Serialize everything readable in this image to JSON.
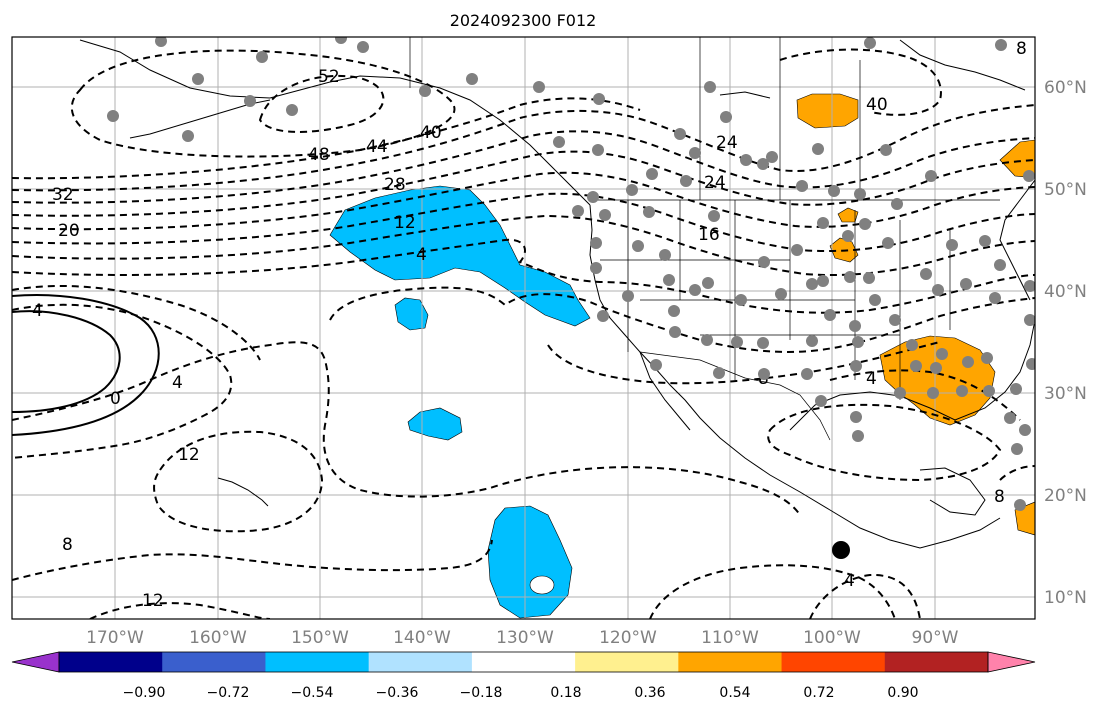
{
  "title": "2024092300 F012",
  "lon_labels": [
    "170°W",
    "160°W",
    "150°W",
    "140°W",
    "130°W",
    "120°W",
    "110°W",
    "100°W",
    "90°W"
  ],
  "lat_labels": [
    "60°N",
    "50°N",
    "40°N",
    "30°N",
    "20°N",
    "10°N"
  ],
  "contour_labels": [
    "52",
    "48",
    "44",
    "40",
    "28",
    "12",
    "4",
    "32",
    "20",
    "4",
    "0",
    "4",
    "12",
    "8",
    "12",
    "24",
    "16",
    "8",
    "4",
    "8",
    "4",
    "40",
    "24",
    "8"
  ],
  "colorbar": {
    "tick_labels": [
      "−0.90",
      "−0.72",
      "−0.54",
      "−0.36",
      "−0.18",
      "0.18",
      "0.36",
      "0.54",
      "0.72",
      "0.90"
    ],
    "colors": [
      "#9932cc",
      "#00008b",
      "#3a5fcd",
      "#00bfff",
      "#b0e2ff",
      "#ffffff",
      "#fff08f",
      "#ffa500",
      "#ff4500",
      "#b22222",
      "#ff82ab"
    ]
  },
  "colors": {
    "negative_fill": "#00bfff",
    "positive_fill": "#ffa500",
    "station_dot": "#808080",
    "marker": "#000000",
    "grid": "#b0b0b0"
  }
}
